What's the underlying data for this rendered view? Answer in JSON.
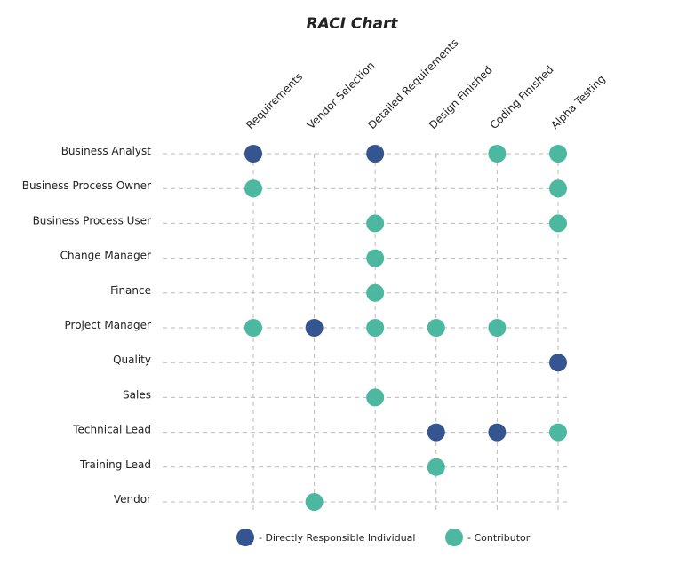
{
  "chart_data": {
    "type": "scatter",
    "title": "RACI Chart",
    "columns": [
      "Requirements",
      "Vendor Selection",
      "Detailed Requirements",
      "Design Finished",
      "Coding Finished",
      "Alpha Testing"
    ],
    "rows": [
      "Business Analyst",
      "Business Process Owner",
      "Business Process User",
      "Change Manager",
      "Finance",
      "Project Manager",
      "Quality",
      "Sales",
      "Technical Lead",
      "Training Lead",
      "Vendor"
    ],
    "matrix": [
      [
        "R",
        "",
        "R",
        "",
        "C",
        "C"
      ],
      [
        "C",
        "",
        "",
        "",
        "",
        "C"
      ],
      [
        "",
        "",
        "C",
        "",
        "",
        "C"
      ],
      [
        "",
        "",
        "C",
        "",
        "",
        ""
      ],
      [
        "",
        "",
        "C",
        "",
        "",
        ""
      ],
      [
        "C",
        "R",
        "C",
        "C",
        "C",
        ""
      ],
      [
        "",
        "",
        "",
        "",
        "",
        "R"
      ],
      [
        "",
        "",
        "C",
        "",
        "",
        ""
      ],
      [
        "",
        "",
        "",
        "R",
        "R",
        "C"
      ],
      [
        "",
        "",
        "",
        "C",
        "",
        ""
      ],
      [
        "",
        "C",
        "",
        "",
        "",
        ""
      ]
    ],
    "legend": [
      {
        "key": "R",
        "label": "- Directly Responsible Individual",
        "color": "#34558f"
      },
      {
        "key": "C",
        "label": "- Contributor",
        "color": "#4cb8a0"
      }
    ],
    "legend_position": "bottom",
    "grid": "dashed"
  }
}
